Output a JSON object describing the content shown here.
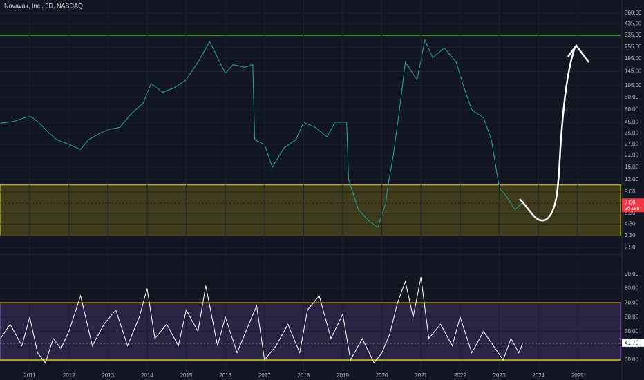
{
  "chart_data": [
    {
      "type": "line",
      "title": "Novavax, Inc., 3D, NASDAQ",
      "log_scale": true,
      "grid": true,
      "xlim": [
        2010.24,
        2026.1
      ],
      "ylim": [
        2.25,
        755
      ],
      "yticks": [
        {
          "value": 560,
          "label": "560.00"
        },
        {
          "value": 435,
          "label": "435.00"
        },
        {
          "value": 335,
          "label": "335.00"
        },
        {
          "value": 255,
          "label": "255.00"
        },
        {
          "value": 195,
          "label": "195.00"
        },
        {
          "value": 145,
          "label": "145.00"
        },
        {
          "value": 105,
          "label": "105.00"
        },
        {
          "value": 80,
          "label": "80.00"
        },
        {
          "value": 60,
          "label": "60.00"
        },
        {
          "value": 45,
          "label": "45.00"
        },
        {
          "value": 35,
          "label": "35.00"
        },
        {
          "value": 27,
          "label": "27.00"
        },
        {
          "value": 21,
          "label": "21.00"
        },
        {
          "value": 16,
          "label": "16.00"
        },
        {
          "value": 12,
          "label": "12.00"
        },
        {
          "value": 9,
          "label": "9.00"
        },
        {
          "value": 7,
          "label": "7.00"
        },
        {
          "value": 5.5,
          "label": "5.50"
        },
        {
          "value": 4.3,
          "label": "4.30"
        },
        {
          "value": 3.3,
          "label": "3.30"
        },
        {
          "value": 2.5,
          "label": "2.50"
        }
      ],
      "hlines": [
        {
          "value": 335,
          "color": "#4caf50"
        }
      ],
      "zone": {
        "values": [
          3.3,
          10.6
        ],
        "color": "#d4c000"
      },
      "last_value": 7.06,
      "countdown": "3d 18h",
      "last_color": "#f23645",
      "series": [
        {
          "color": "#26a69a",
          "x": [
            2010.25,
            2010.6,
            2011.0,
            2011.2,
            2011.5,
            2011.7,
            2012.0,
            2012.3,
            2012.5,
            2012.8,
            2013.0,
            2013.3,
            2013.6,
            2013.9,
            2014.1,
            2014.4,
            2014.7,
            2015.0,
            2015.3,
            2015.6,
            2015.8,
            2016.0,
            2016.2,
            2016.5,
            2016.7,
            2016.75,
            2017.0,
            2017.2,
            2017.5,
            2017.8,
            2018.0,
            2018.3,
            2018.6,
            2018.8,
            2019.1,
            2019.15,
            2019.4,
            2019.7,
            2019.9,
            2020.1,
            2020.15,
            2020.3,
            2020.45,
            2020.6,
            2020.9,
            2021.1,
            2021.3,
            2021.6,
            2021.9,
            2022.1,
            2022.3,
            2022.6,
            2022.8,
            2023.0,
            2023.2,
            2023.4,
            2023.6
          ],
          "values": [
            44,
            46,
            52,
            46,
            35,
            30,
            27,
            24,
            30,
            35,
            38,
            40,
            55,
            70,
            110,
            90,
            100,
            120,
            180,
            290,
            200,
            140,
            170,
            160,
            170,
            30,
            27,
            16,
            25,
            30,
            45,
            40,
            32,
            45,
            45,
            12,
            6,
            4.5,
            4,
            7,
            10,
            22,
            60,
            180,
            120,
            300,
            200,
            250,
            180,
            100,
            60,
            50,
            30,
            10,
            8,
            6,
            7.06
          ]
        }
      ]
    },
    {
      "type": "line",
      "grid": true,
      "xlim": [
        2010.24,
        2026.1
      ],
      "ylim": [
        21.8,
        100.6
      ],
      "yticks": [
        {
          "value": 90,
          "label": "90.00"
        },
        {
          "value": 80,
          "label": "80.00"
        },
        {
          "value": 70,
          "label": "70.00"
        },
        {
          "value": 60,
          "label": "60.00"
        },
        {
          "value": 50,
          "label": "50.00"
        },
        {
          "value": 40,
          "label": "40.00"
        },
        {
          "value": 30,
          "label": "30.00"
        }
      ],
      "xticks": [
        2011,
        2012,
        2013,
        2014,
        2015,
        2016,
        2017,
        2018,
        2019,
        2020,
        2021,
        2022,
        2023,
        2024,
        2025
      ],
      "hlines": [
        {
          "value": 70,
          "color": "#d4c000"
        },
        {
          "value": 30,
          "color": "#d4c000"
        }
      ],
      "zone": {
        "values": [
          30,
          70
        ],
        "color": "#7e57c2"
      },
      "last_value": {
        "value": 41.7,
        "label": "41.70"
      },
      "last_color": "#ffffff",
      "series": [
        {
          "color": "#ffffff",
          "x": [
            2010.25,
            2010.5,
            2010.8,
            2011.0,
            2011.2,
            2011.4,
            2011.6,
            2011.8,
            2012.0,
            2012.3,
            2012.6,
            2012.9,
            2013.2,
            2013.5,
            2013.8,
            2014.0,
            2014.2,
            2014.5,
            2014.8,
            2015.0,
            2015.3,
            2015.5,
            2015.8,
            2016.0,
            2016.3,
            2016.6,
            2016.8,
            2017.0,
            2017.3,
            2017.6,
            2017.9,
            2018.1,
            2018.4,
            2018.7,
            2019.0,
            2019.2,
            2019.5,
            2019.8,
            2020.0,
            2020.2,
            2020.4,
            2020.6,
            2020.8,
            2021.0,
            2021.2,
            2021.5,
            2021.8,
            2022.0,
            2022.3,
            2022.6,
            2022.9,
            2023.1,
            2023.3,
            2023.5,
            2023.6
          ],
          "values": [
            45,
            55,
            40,
            60,
            35,
            28,
            45,
            38,
            50,
            75,
            40,
            55,
            65,
            40,
            60,
            80,
            45,
            55,
            40,
            65,
            50,
            82,
            40,
            60,
            35,
            55,
            68,
            30,
            40,
            55,
            35,
            65,
            75,
            45,
            62,
            30,
            45,
            28,
            35,
            48,
            70,
            85,
            60,
            88,
            45,
            55,
            40,
            60,
            35,
            50,
            38,
            30,
            45,
            35,
            41.7
          ]
        }
      ]
    }
  ]
}
